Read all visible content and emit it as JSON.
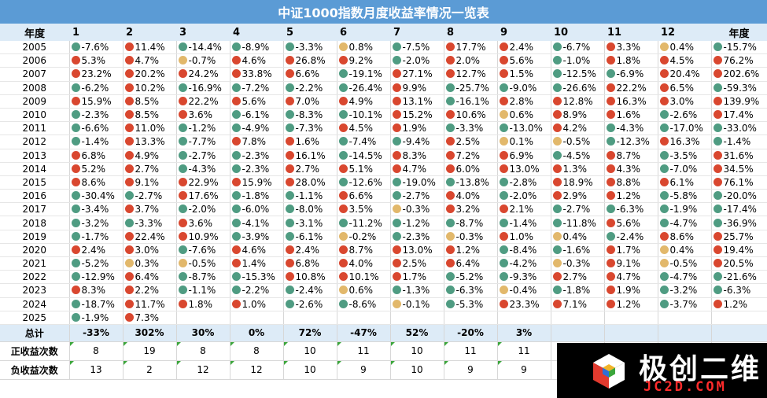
{
  "title": "中证1000指数月度收益率情况一览表",
  "colors": {
    "header_bg": "#5B9BD5",
    "subheader_bg": "#DDEBF7",
    "positive": "#D9472F",
    "negative": "#4F9C82",
    "neutral": "#E2B86B"
  },
  "chart_data": {
    "type": "table",
    "title": "中证1000指数月度收益率情况一览表",
    "columns": [
      "年度",
      "1",
      "2",
      "3",
      "4",
      "5",
      "6",
      "7",
      "8",
      "9",
      "10",
      "11",
      "12",
      "年度"
    ],
    "rows": [
      {
        "year": "2005",
        "cells": [
          "-7.6%",
          "11.4%",
          "-14.4%",
          "-8.9%",
          "-3.3%",
          "0.8%",
          "-7.5%",
          "17.7%",
          "2.4%",
          "-6.7%",
          "3.3%",
          "0.4%",
          "-15.7%"
        ]
      },
      {
        "year": "2006",
        "cells": [
          "5.3%",
          "4.7%",
          "-0.7%",
          "4.6%",
          "26.8%",
          "9.2%",
          "-2.0%",
          "2.0%",
          "5.6%",
          "-1.0%",
          "1.8%",
          "4.5%",
          "76.2%"
        ]
      },
      {
        "year": "2007",
        "cells": [
          "23.2%",
          "20.2%",
          "24.2%",
          "33.8%",
          "6.6%",
          "-19.1%",
          "27.1%",
          "12.7%",
          "1.5%",
          "-12.5%",
          "-6.9%",
          "20.4%",
          "202.6%"
        ]
      },
      {
        "year": "2008",
        "cells": [
          "-6.2%",
          "10.2%",
          "-16.9%",
          "-7.2%",
          "-2.2%",
          "-26.4%",
          "9.9%",
          "-25.7%",
          "-9.0%",
          "-26.6%",
          "22.2%",
          "6.5%",
          "-59.3%"
        ]
      },
      {
        "year": "2009",
        "cells": [
          "15.9%",
          "8.5%",
          "22.2%",
          "5.6%",
          "7.0%",
          "4.9%",
          "13.1%",
          "-16.1%",
          "2.8%",
          "12.8%",
          "16.3%",
          "3.0%",
          "139.9%"
        ]
      },
      {
        "year": "2010",
        "cells": [
          "-2.3%",
          "8.5%",
          "3.6%",
          "-6.1%",
          "-8.3%",
          "-10.1%",
          "15.2%",
          "10.6%",
          "0.6%",
          "8.9%",
          "1.6%",
          "-2.6%",
          "17.4%"
        ]
      },
      {
        "year": "2011",
        "cells": [
          "-6.6%",
          "11.0%",
          "-1.2%",
          "-4.9%",
          "-7.3%",
          "4.5%",
          "1.9%",
          "-3.3%",
          "-13.0%",
          "4.2%",
          "-4.3%",
          "-17.0%",
          "-33.0%"
        ]
      },
      {
        "year": "2012",
        "cells": [
          "-1.4%",
          "13.3%",
          "-7.7%",
          "7.8%",
          "1.6%",
          "-7.4%",
          "-9.4%",
          "2.5%",
          "0.1%",
          "-0.5%",
          "-12.3%",
          "16.3%",
          "-1.4%"
        ]
      },
      {
        "year": "2013",
        "cells": [
          "6.8%",
          "4.9%",
          "-2.7%",
          "-2.3%",
          "16.1%",
          "-14.5%",
          "8.3%",
          "7.2%",
          "6.9%",
          "-4.5%",
          "8.7%",
          "-3.5%",
          "31.6%"
        ]
      },
      {
        "year": "2014",
        "cells": [
          "5.2%",
          "2.7%",
          "-4.3%",
          "-2.3%",
          "2.7%",
          "5.1%",
          "4.7%",
          "6.0%",
          "13.0%",
          "1.3%",
          "4.3%",
          "-7.0%",
          "34.5%"
        ]
      },
      {
        "year": "2015",
        "cells": [
          "8.6%",
          "9.1%",
          "22.9%",
          "15.9%",
          "28.0%",
          "-12.6%",
          "-19.0%",
          "-13.8%",
          "-2.8%",
          "18.9%",
          "8.8%",
          "6.1%",
          "76.1%"
        ]
      },
      {
        "year": "2016",
        "cells": [
          "-30.4%",
          "-2.7%",
          "17.6%",
          "-1.8%",
          "-1.1%",
          "6.6%",
          "-2.7%",
          "4.0%",
          "-2.0%",
          "2.9%",
          "1.2%",
          "-5.8%",
          "-20.0%"
        ]
      },
      {
        "year": "2017",
        "cells": [
          "-3.4%",
          "3.7%",
          "-2.0%",
          "-6.0%",
          "-8.0%",
          "3.5%",
          "-0.3%",
          "3.2%",
          "2.1%",
          "-2.7%",
          "-6.3%",
          "-1.9%",
          "-17.4%"
        ]
      },
      {
        "year": "2018",
        "cells": [
          "-3.2%",
          "-3.3%",
          "3.6%",
          "-4.1%",
          "-3.1%",
          "-11.2%",
          "-1.2%",
          "-8.7%",
          "-1.4%",
          "-11.8%",
          "5.6%",
          "-4.7%",
          "-36.9%"
        ]
      },
      {
        "year": "2019",
        "cells": [
          "-1.7%",
          "22.4%",
          "10.9%",
          "-3.9%",
          "-6.1%",
          "-0.2%",
          "-2.3%",
          "-0.3%",
          "1.0%",
          "0.4%",
          "-2.4%",
          "8.6%",
          "25.7%"
        ]
      },
      {
        "year": "2020",
        "cells": [
          "2.4%",
          "3.0%",
          "-7.6%",
          "4.6%",
          "2.4%",
          "8.7%",
          "13.0%",
          "1.2%",
          "-8.4%",
          "-1.6%",
          "1.7%",
          "0.4%",
          "19.4%"
        ]
      },
      {
        "year": "2021",
        "cells": [
          "-5.2%",
          "0.3%",
          "-0.5%",
          "1.4%",
          "6.8%",
          "4.0%",
          "2.5%",
          "6.4%",
          "-4.2%",
          "-0.3%",
          "9.1%",
          "-0.5%",
          "20.5%"
        ]
      },
      {
        "year": "2022",
        "cells": [
          "-12.9%",
          "6.4%",
          "-8.7%",
          "-15.3%",
          "10.8%",
          "10.1%",
          "1.7%",
          "-5.2%",
          "-9.3%",
          "2.7%",
          "4.7%",
          "-4.7%",
          "-21.6%"
        ]
      },
      {
        "year": "2023",
        "cells": [
          "8.3%",
          "2.2%",
          "-1.1%",
          "-2.2%",
          "-2.4%",
          "0.6%",
          "-1.3%",
          "-6.3%",
          "-0.4%",
          "-1.8%",
          "1.9%",
          "-3.2%",
          "-6.3%"
        ]
      },
      {
        "year": "2024",
        "cells": [
          "-18.7%",
          "11.7%",
          "1.8%",
          "1.0%",
          "-2.6%",
          "-8.6%",
          "-0.1%",
          "-5.3%",
          "23.3%",
          "7.1%",
          "1.2%",
          "-3.7%",
          "1.2%"
        ]
      },
      {
        "year": "2025",
        "cells": [
          "-1.9%",
          "7.3%",
          "",
          "",
          "",
          "",
          "",
          "",
          "",
          "",
          "",
          "",
          ""
        ]
      }
    ],
    "totals": {
      "label": "总计",
      "values": [
        "-33%",
        "302%",
        "30%",
        "0%",
        "72%",
        "-47%",
        "52%",
        "-20%",
        "3%",
        "",
        "",
        "",
        ""
      ]
    },
    "positive_counts": {
      "label": "正收益次数",
      "values": [
        "8",
        "19",
        "8",
        "8",
        "10",
        "11",
        "10",
        "11",
        "11",
        "",
        "",
        "",
        ""
      ]
    },
    "negative_counts": {
      "label": "负收益次数",
      "values": [
        "13",
        "2",
        "12",
        "12",
        "10",
        "9",
        "10",
        "9",
        "9",
        "",
        "",
        "",
        ""
      ]
    }
  },
  "watermark": {
    "name": "极创二维",
    "url": "JC2D.COM"
  }
}
